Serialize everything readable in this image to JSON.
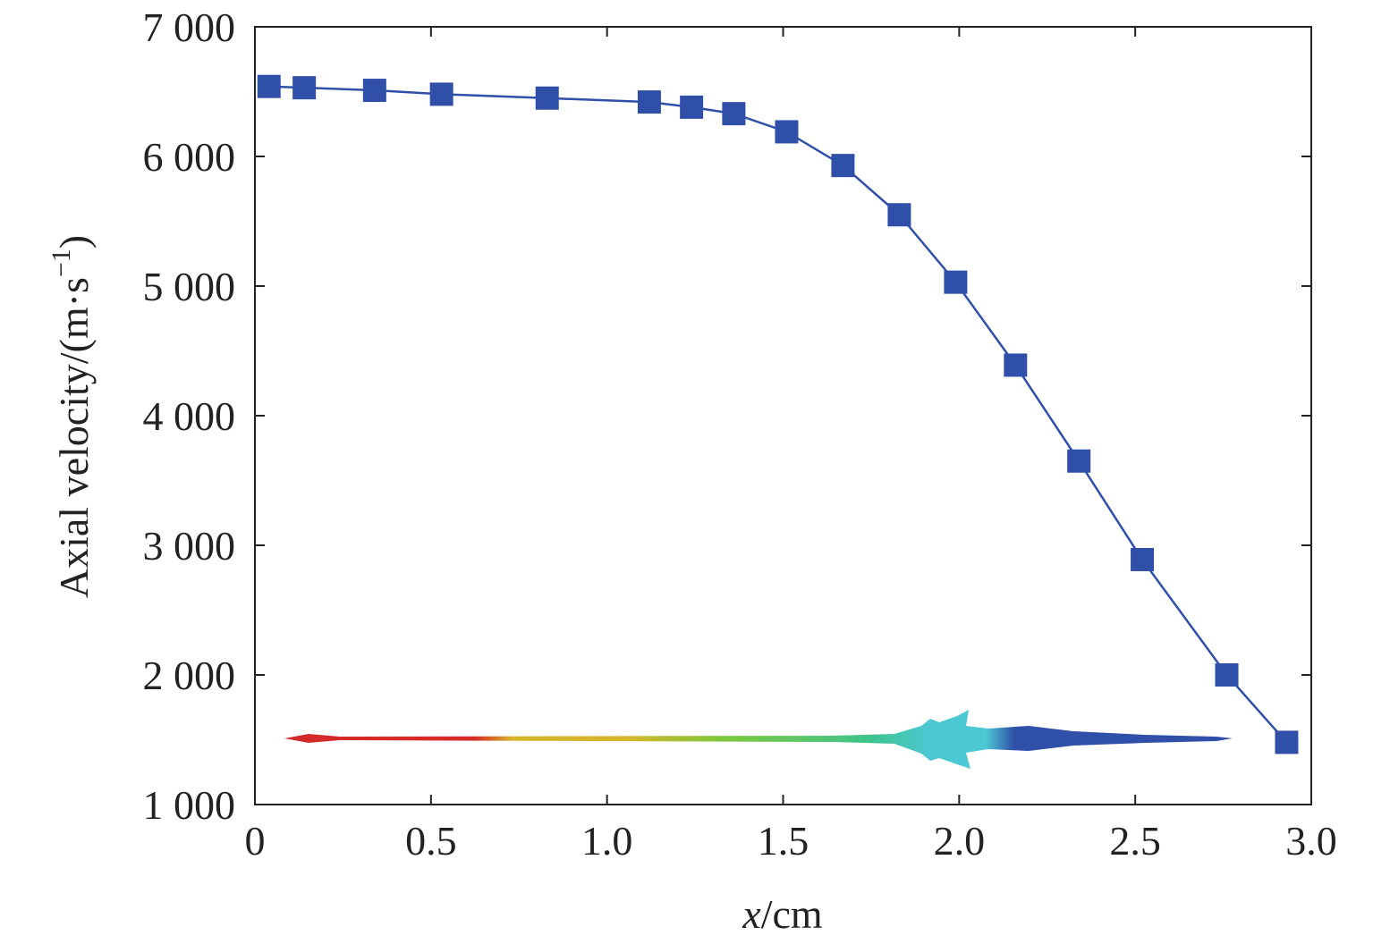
{
  "chart_data": {
    "type": "line",
    "title": "",
    "xlabel_var": "x",
    "xlabel_unit": "/cm",
    "ylabel": "Axial velocity/(m·s",
    "ylabel_sup": "−1",
    "ylabel_close": ")",
    "xlim": [
      0,
      3.0
    ],
    "ylim": [
      1000,
      7000
    ],
    "xticks": [
      0,
      0.5,
      1.0,
      1.5,
      2.0,
      2.5,
      3.0
    ],
    "xtick_labels": [
      "0",
      "0.5",
      "1.0",
      "1.5",
      "2.0",
      "2.5",
      "3.0"
    ],
    "yticks": [
      1000,
      2000,
      3000,
      4000,
      5000,
      6000,
      7000
    ],
    "ytick_labels": [
      "1 000",
      "2 000",
      "3 000",
      "4 000",
      "5 000",
      "6 000",
      "7 000"
    ],
    "grid": false,
    "series": [
      {
        "name": "Axial velocity",
        "color": "#2f4fa8",
        "marker": "square",
        "x": [
          0.04,
          0.14,
          0.34,
          0.53,
          0.83,
          1.12,
          1.24,
          1.36,
          1.51,
          1.67,
          1.83,
          1.99,
          2.16,
          2.34,
          2.52,
          2.76,
          2.93
        ],
        "y": [
          6540,
          6530,
          6510,
          6480,
          6450,
          6420,
          6380,
          6330,
          6190,
          5930,
          5550,
          5030,
          4390,
          3650,
          2890,
          2000,
          1480
        ]
      }
    ],
    "inset": {
      "description_colors": [
        "#d42a2a",
        "#d6b52a",
        "#7ec83a",
        "#3fc48f",
        "#4cc7d4",
        "#2f4fa8"
      ]
    }
  }
}
